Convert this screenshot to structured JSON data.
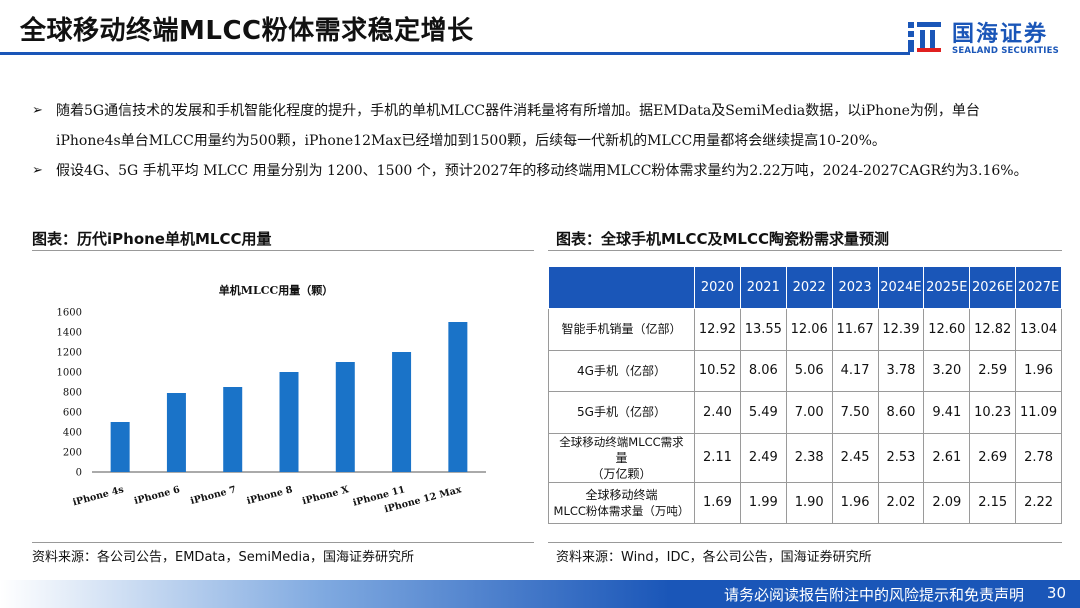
{
  "header": {
    "title": "全球移动终端MLCC粉体需求稳定增长",
    "logo_cn": "国海证券",
    "logo_en": "SEALAND SECURITIES"
  },
  "bullets": [
    {
      "icon": "arrow-right-icon",
      "marker": "➢",
      "line1": "随着5G通信技术的发展和手机智能化程度的提升，手机的单机MLCC器件消耗量将有所增加。据EMData及SemiMedia数据，以iPhone为例，单台",
      "line2": "iPhone4s单台MLCC用量约为500颗，iPhone12Max已经增加到1500颗，后续每一代新机的MLCC用量都将会继续提高10-20%。"
    },
    {
      "icon": "arrow-right-icon",
      "marker": "➢",
      "line1": "假设4G、5G 手机平均 MLCC 用量分别为 1200、1500 个，预计2027年的移动终端用MLCC粉体需求量约为2.22万吨，2024-2027CAGR约为3.16%。"
    }
  ],
  "left_panel": {
    "title": "图表：历代iPhone单机MLCC用量",
    "source": "资料来源：各公司公告，EMData，SemiMedia，国海证券研究所"
  },
  "right_panel": {
    "title": "图表：全球手机MLCC及MLCC陶瓷粉需求量预测",
    "source": "资料来源：Wind，IDC，各公司公告，国海证券研究所"
  },
  "chart_data": {
    "type": "bar",
    "title": "单机MLCC用量（颗）",
    "categories": [
      "iPhone 4s",
      "iPhone 6",
      "iPhone 7",
      "iPhone 8",
      "iPhone X",
      "iPhone 11",
      "iPhone 12 Max"
    ],
    "values": [
      500,
      790,
      850,
      1000,
      1100,
      1200,
      1500
    ],
    "ylim": [
      0,
      1600
    ],
    "yticks": [
      "0",
      "200",
      "400",
      "600",
      "800",
      "1000",
      "1200",
      "1400",
      "1600"
    ],
    "grid": false,
    "xlabel": "",
    "ylabel": "",
    "bar_color": "#1a73c8"
  },
  "table": {
    "headers": [
      "",
      "2020",
      "2021",
      "2022",
      "2023",
      "2024E",
      "2025E",
      "2026E",
      "2027E"
    ],
    "rows": [
      {
        "label1": "智能手机销量（亿部）",
        "label2": "",
        "label3": "",
        "values": [
          "12.92",
          "13.55",
          "12.06",
          "11.67",
          "12.39",
          "12.60",
          "12.82",
          "13.04"
        ]
      },
      {
        "label1": "4G手机（亿部）",
        "label2": "",
        "label3": "",
        "values": [
          "10.52",
          "8.06",
          "5.06",
          "4.17",
          "3.78",
          "3.20",
          "2.59",
          "1.96"
        ]
      },
      {
        "label1": "5G手机（亿部）",
        "label2": "",
        "label3": "",
        "values": [
          "2.40",
          "5.49",
          "7.00",
          "7.50",
          "8.60",
          "9.41",
          "10.23",
          "11.09"
        ]
      },
      {
        "label1": "全球移动终端MLCC需求",
        "label2": "量",
        "label3": "（万亿颗）",
        "values": [
          "2.11",
          "2.49",
          "2.38",
          "2.45",
          "2.53",
          "2.61",
          "2.69",
          "2.78"
        ]
      },
      {
        "label1": "全球移动终端",
        "label2": "MLCC粉体需求量（万吨）",
        "label3": "",
        "values": [
          "1.69",
          "1.99",
          "1.90",
          "1.96",
          "2.02",
          "2.09",
          "2.15",
          "2.22"
        ]
      }
    ]
  },
  "footer": {
    "disclaimer": "请务必阅读报告附注中的风险提示和免责声明",
    "page": "30"
  },
  "colors": {
    "brand_blue": "#1a56b8",
    "bar_blue": "#1a73c8"
  }
}
